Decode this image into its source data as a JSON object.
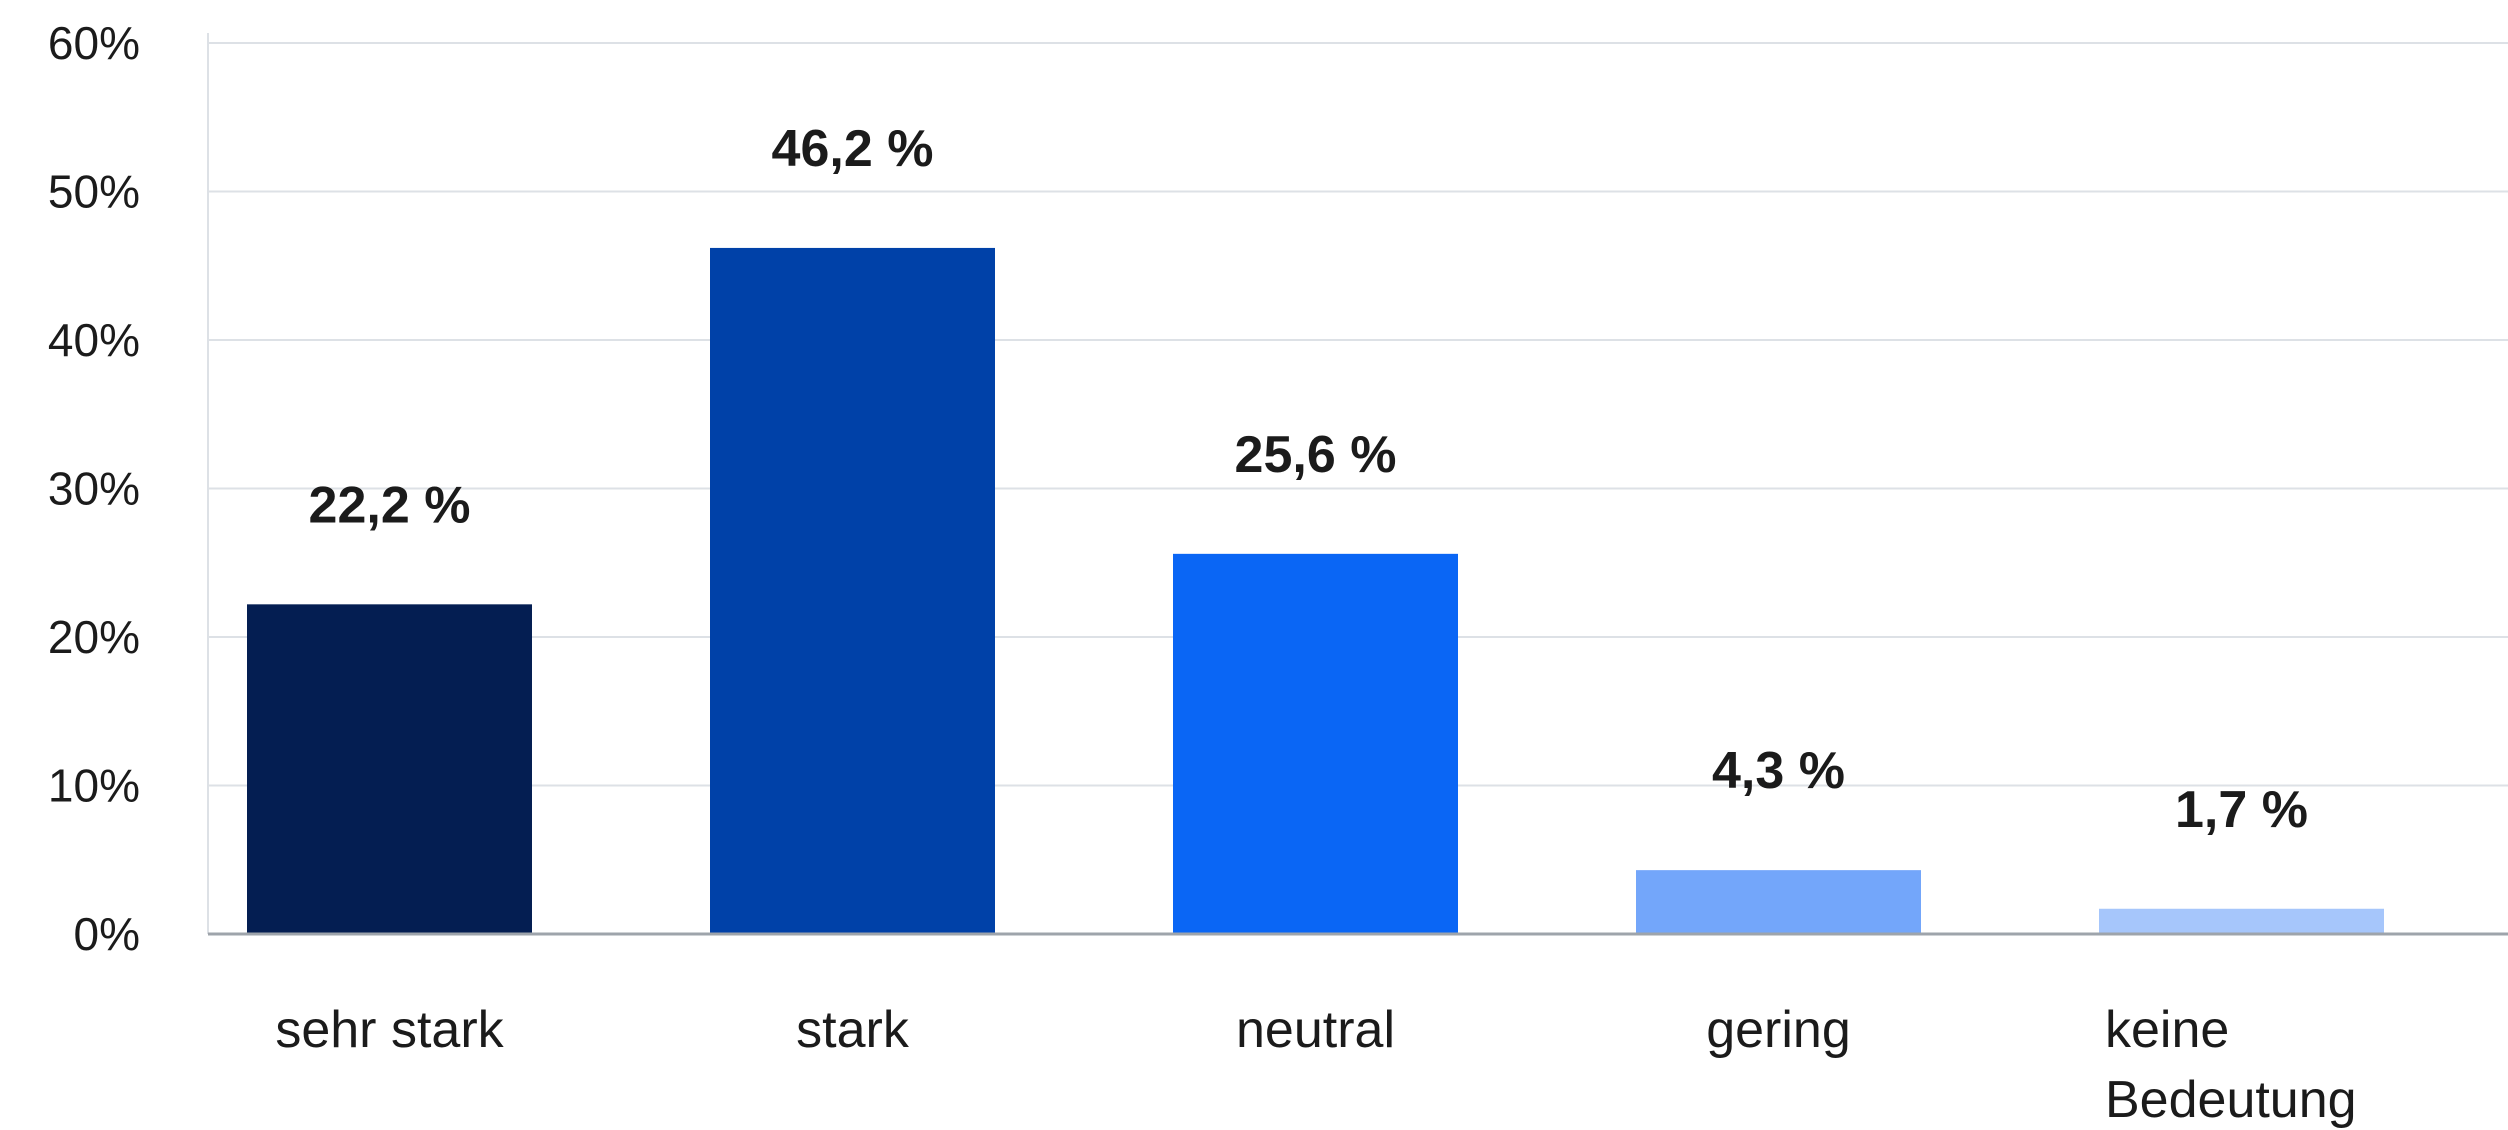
{
  "chart_data": {
    "type": "bar",
    "categories": [
      "sehr stark",
      "stark",
      "neutral",
      "gering",
      "keine Bedeutung"
    ],
    "category_lines": [
      [
        "sehr stark"
      ],
      [
        "stark"
      ],
      [
        "neutral"
      ],
      [
        "gering"
      ],
      [
        "keine",
        "Bedeutung"
      ]
    ],
    "values": [
      22.2,
      46.2,
      25.6,
      4.3,
      1.7
    ],
    "value_labels": [
      "22,2 %",
      "46,2 %",
      "25,6 %",
      "4,3 %",
      "1,7 %"
    ],
    "colors": [
      "#041e52",
      "#0041a8",
      "#0a66f5",
      "#73a6fa",
      "#a6c6fb"
    ],
    "ylim": [
      0,
      60
    ],
    "yticks": [
      0,
      10,
      20,
      30,
      40,
      50,
      60
    ],
    "ytick_labels": [
      "0%",
      "10%",
      "20%",
      "30%",
      "40%",
      "50%",
      "60%"
    ],
    "grid": true,
    "title": "",
    "xlabel": "",
    "ylabel": ""
  }
}
